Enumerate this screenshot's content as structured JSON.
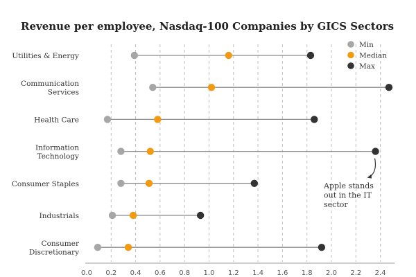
{
  "chart_data": {
    "type": "dot-range",
    "title": "Revenue per employee, Nasdaq-100 Companies by GICS Sectors",
    "xlabel": "",
    "ylabel": "",
    "xlim": [
      0.0,
      2.5
    ],
    "xticks": [
      "0.0",
      "0.2",
      "0.4",
      "0.6",
      "0.8",
      "1.0",
      "1.2",
      "1.4",
      "1.6",
      "1.8",
      "2.0",
      "2.2",
      "2.4"
    ],
    "grid": true,
    "legend_position": "top-right",
    "categories": [
      {
        "lines": [
          "Utilities & Energy"
        ]
      },
      {
        "lines": [
          "Communication",
          "Services"
        ]
      },
      {
        "lines": [
          "Health Care"
        ]
      },
      {
        "lines": [
          "Information",
          "Technology"
        ]
      },
      {
        "lines": [
          "Consumer Staples"
        ]
      },
      {
        "lines": [
          "Industrials"
        ]
      },
      {
        "lines": [
          "Consumer",
          "Discretionary"
        ]
      }
    ],
    "series": [
      {
        "name": "Min",
        "color": "#a6a6a6",
        "values": [
          0.39,
          0.54,
          0.17,
          0.28,
          0.28,
          0.21,
          0.09
        ]
      },
      {
        "name": "Median",
        "color": "#f29b12",
        "values": [
          1.16,
          1.02,
          0.58,
          0.52,
          0.51,
          0.38,
          0.34
        ]
      },
      {
        "name": "Max",
        "color": "#333333",
        "values": [
          1.83,
          2.47,
          1.86,
          2.36,
          1.37,
          0.93,
          1.92
        ]
      }
    ],
    "annotation": {
      "lines": [
        "Apple stands",
        "out in the IT",
        "sector"
      ],
      "category_index": 3,
      "points_to_series": "Max"
    }
  }
}
